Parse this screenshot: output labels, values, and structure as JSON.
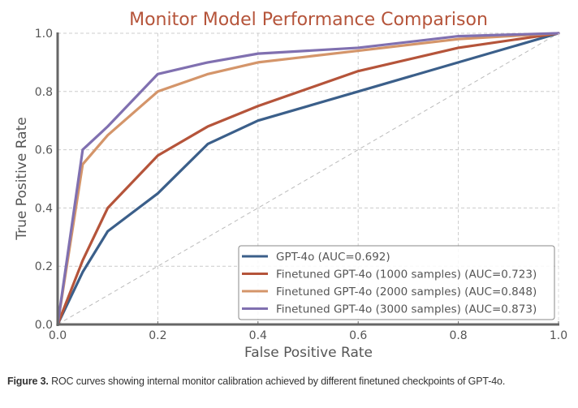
{
  "chart_data": {
    "type": "line",
    "title": "Monitor Model Performance Comparison",
    "xlabel": "False Positive Rate",
    "ylabel": "True Positive Rate",
    "xlim": [
      0,
      1
    ],
    "ylim": [
      0,
      1
    ],
    "xticks": [
      "0.0",
      "0.2",
      "0.4",
      "0.6",
      "0.8",
      "1.0"
    ],
    "yticks": [
      "0.0",
      "0.2",
      "0.4",
      "0.6",
      "0.8",
      "1.0"
    ],
    "grid": true,
    "legend_position": "bottom-right",
    "x": [
      0.0,
      0.05,
      0.1,
      0.2,
      0.3,
      0.4,
      0.6,
      0.8,
      1.0
    ],
    "series": [
      {
        "name": "GPT-4o (AUC=0.692)",
        "color": "#3b5f8a",
        "values": [
          0.0,
          0.18,
          0.32,
          0.45,
          0.62,
          0.7,
          0.8,
          0.9,
          1.0
        ]
      },
      {
        "name": "Finetuned GPT-4o (1000 samples) (AUC=0.723)",
        "color": "#b5543a",
        "values": [
          0.0,
          0.22,
          0.4,
          0.58,
          0.68,
          0.75,
          0.87,
          0.95,
          1.0
        ]
      },
      {
        "name": "Finetuned GPT-4o (2000 samples) (AUC=0.848)",
        "color": "#d4956a",
        "values": [
          0.0,
          0.55,
          0.65,
          0.8,
          0.86,
          0.9,
          0.94,
          0.98,
          1.0
        ]
      },
      {
        "name": "Finetuned GPT-4o (3000 samples) (AUC=0.873)",
        "color": "#8070b0",
        "values": [
          0.0,
          0.6,
          0.68,
          0.86,
          0.9,
          0.93,
          0.95,
          0.99,
          1.0
        ]
      }
    ],
    "reference_line": {
      "name": "Random classifier",
      "x": [
        0,
        1
      ],
      "y": [
        0,
        1
      ],
      "style": "dashed",
      "color": "#bbbbbb"
    }
  },
  "colors": {
    "title": "#b5543a",
    "axis": "#666666",
    "text": "#555555"
  },
  "caption": {
    "label": "Figure 3.",
    "text": " ROC curves showing internal monitor calibration achieved by different finetuned checkpoints of GPT-4o."
  }
}
